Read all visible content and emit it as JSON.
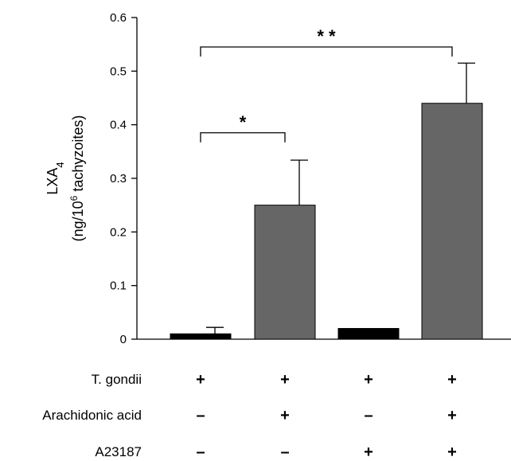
{
  "chart_data": {
    "type": "bar",
    "ylabel_line1": "LXA",
    "ylabel_line1_sub": "4",
    "ylabel_line2_pre": "(ng/10",
    "ylabel_line2_sup": "6",
    "ylabel_line2_post": " tachyzoites)",
    "ylim": [
      0,
      0.6
    ],
    "yticks": [
      {
        "value": 0,
        "label": "0"
      },
      {
        "value": 0.1,
        "label": "0.1"
      },
      {
        "value": 0.2,
        "label": "0.2"
      },
      {
        "value": 0.3,
        "label": "0.3"
      },
      {
        "value": 0.4,
        "label": "0.4"
      },
      {
        "value": 0.5,
        "label": "0.5"
      },
      {
        "value": 0.6,
        "label": "0.6"
      }
    ],
    "values": [
      0.01,
      0.25,
      0.02,
      0.44
    ],
    "errors": [
      0.012,
      0.084,
      null,
      0.075
    ],
    "bar_colors": [
      "#000000",
      "#666666",
      "#000000",
      "#666666"
    ],
    "conditions": [
      {
        "label": "T. gondii",
        "symbols": [
          "+",
          "+",
          "+",
          "+"
        ]
      },
      {
        "label": "Arachidonic acid",
        "symbols": [
          "–",
          "+",
          "–",
          "+"
        ]
      },
      {
        "label": "A23187",
        "symbols": [
          "–",
          "–",
          "+",
          "+"
        ]
      }
    ],
    "significance": [
      {
        "from": 0,
        "to": 1,
        "level": 0.385,
        "label": "*"
      },
      {
        "from": 0,
        "to": 3,
        "level": 0.545,
        "label": "* *"
      }
    ]
  }
}
